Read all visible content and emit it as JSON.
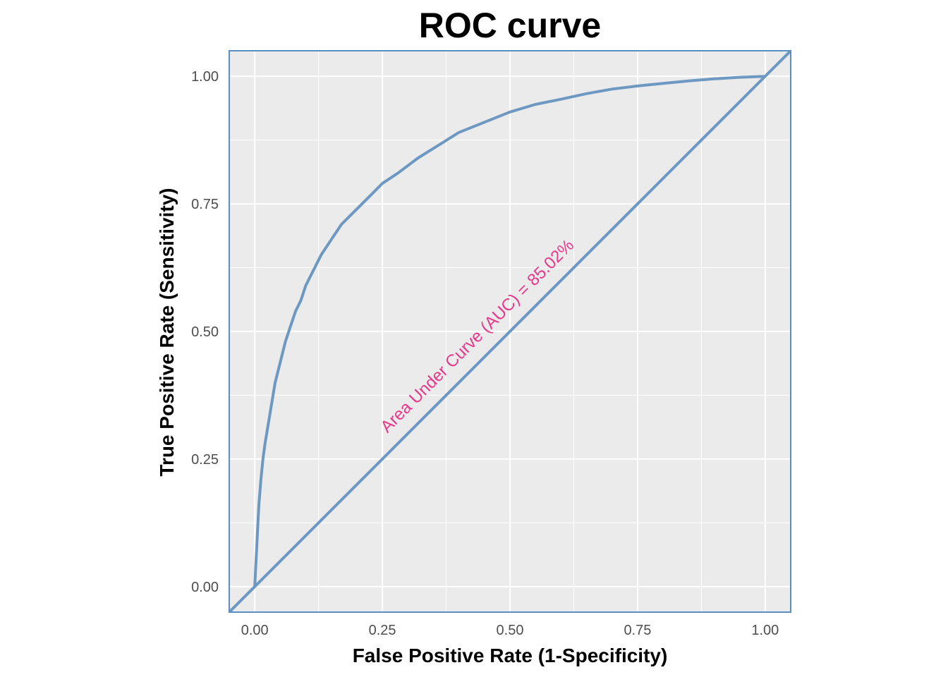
{
  "chart_data": {
    "type": "line",
    "title": "ROC curve",
    "xlabel": "False Positive Rate (1-Specificity)",
    "ylabel": "True Positive Rate (Sensitivity)",
    "xlim": [
      -0.05,
      1.05
    ],
    "ylim": [
      -0.05,
      1.05
    ],
    "x_ticks": [
      0.0,
      0.25,
      0.5,
      0.75,
      1.0
    ],
    "x_tick_labels": [
      "0.00",
      "0.25",
      "0.50",
      "0.75",
      "1.00"
    ],
    "y_ticks": [
      0.0,
      0.25,
      0.5,
      0.75,
      1.0
    ],
    "y_tick_labels": [
      "0.00",
      "0.25",
      "0.50",
      "0.75",
      "1.00"
    ],
    "grid": true,
    "series": [
      {
        "name": "ROC",
        "x": [
          0.0,
          0.002,
          0.004,
          0.006,
          0.008,
          0.012,
          0.016,
          0.02,
          0.025,
          0.03,
          0.035,
          0.04,
          0.05,
          0.06,
          0.07,
          0.08,
          0.09,
          0.1,
          0.115,
          0.13,
          0.15,
          0.17,
          0.19,
          0.22,
          0.25,
          0.28,
          0.32,
          0.36,
          0.4,
          0.45,
          0.5,
          0.55,
          0.6,
          0.65,
          0.7,
          0.75,
          0.8,
          0.85,
          0.9,
          0.95,
          1.0
        ],
        "y": [
          0.0,
          0.04,
          0.08,
          0.12,
          0.16,
          0.21,
          0.25,
          0.28,
          0.31,
          0.34,
          0.37,
          0.4,
          0.44,
          0.48,
          0.51,
          0.54,
          0.56,
          0.59,
          0.62,
          0.65,
          0.68,
          0.71,
          0.73,
          0.76,
          0.79,
          0.81,
          0.84,
          0.865,
          0.89,
          0.91,
          0.93,
          0.945,
          0.955,
          0.966,
          0.975,
          0.981,
          0.986,
          0.991,
          0.995,
          0.998,
          1.0
        ],
        "color": "#6d98c2"
      },
      {
        "name": "Diagonal",
        "x": [
          -0.05,
          1.05
        ],
        "y": [
          -0.05,
          1.05
        ],
        "color": "#6d98c2"
      }
    ],
    "annotation": {
      "text": "Area Under Curve (AUC) = 85.02%",
      "x": 0.26,
      "y": 0.3,
      "color": "#e8388a"
    },
    "colors": {
      "panel_background": "#ebebeb",
      "grid": "#ffffff",
      "border": "#5b8fc2"
    }
  }
}
